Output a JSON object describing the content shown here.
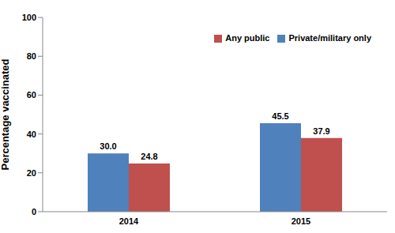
{
  "chart_data": {
    "type": "bar",
    "y_label": "Percentage vaccinated",
    "categories": [
      "2014",
      "2015"
    ],
    "series": [
      {
        "name": "Private/military only",
        "color": "#4f81bd",
        "values": [
          30.0,
          45.5
        ],
        "value_labels": [
          "30.0",
          "45.5"
        ]
      },
      {
        "name": "Any public",
        "color": "#c0504d",
        "values": [
          24.8,
          37.9
        ],
        "value_labels": [
          "24.8",
          "37.9"
        ]
      }
    ],
    "ylim": [
      0,
      100
    ],
    "yticks": [
      0,
      20,
      40,
      60,
      80,
      100
    ],
    "grid": false,
    "legend": "top-right",
    "data_labels": true
  }
}
